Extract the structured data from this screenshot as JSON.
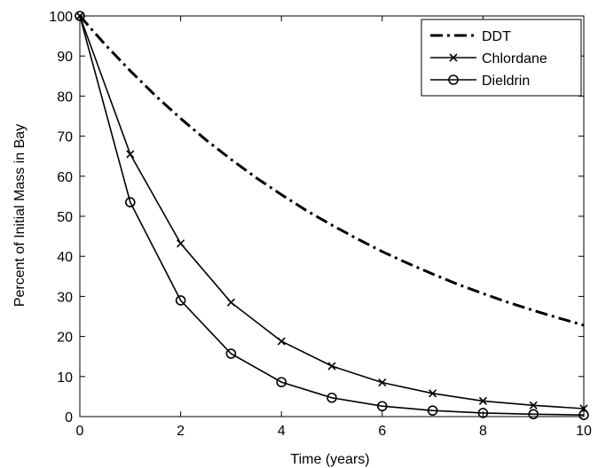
{
  "chart_data": {
    "type": "line",
    "xlabel": "Time (years)",
    "ylabel": "Percent of Initial Mass in Bay",
    "xlim": [
      0,
      10
    ],
    "ylim": [
      0,
      100
    ],
    "xticks": [
      0,
      2,
      4,
      6,
      8,
      10
    ],
    "yticks": [
      0,
      10,
      20,
      30,
      40,
      50,
      60,
      70,
      80,
      90,
      100
    ],
    "grid": false,
    "legend_position": "top-right",
    "series": [
      {
        "name": "DDT",
        "style": "dash-dot",
        "marker": "none",
        "x": [
          0,
          0.5,
          1,
          1.5,
          2,
          2.5,
          3,
          3.5,
          4,
          4.5,
          5,
          5.5,
          6,
          6.5,
          7,
          7.5,
          8,
          8.5,
          9,
          9.5,
          10
        ],
        "y": [
          100,
          92.9,
          86.3,
          80.1,
          74.4,
          69.1,
          64.2,
          59.6,
          55.4,
          51.4,
          47.8,
          44.4,
          41.2,
          38.3,
          35.6,
          33.0,
          30.7,
          28.5,
          26.5,
          24.6,
          22.8
        ]
      },
      {
        "name": "Chlordane",
        "style": "solid",
        "marker": "x",
        "x": [
          0,
          1,
          2,
          3,
          4,
          5,
          6,
          7,
          8,
          9,
          10
        ],
        "y": [
          100,
          65.5,
          43.2,
          28.5,
          18.8,
          12.6,
          8.5,
          5.8,
          3.9,
          2.8,
          2.0
        ]
      },
      {
        "name": "Dieldrin",
        "style": "solid",
        "marker": "o",
        "x": [
          0,
          1,
          2,
          3,
          4,
          5,
          6,
          7,
          8,
          9,
          10
        ],
        "y": [
          100,
          53.5,
          29.0,
          15.7,
          8.6,
          4.7,
          2.6,
          1.5,
          0.9,
          0.6,
          0.4
        ]
      }
    ]
  }
}
